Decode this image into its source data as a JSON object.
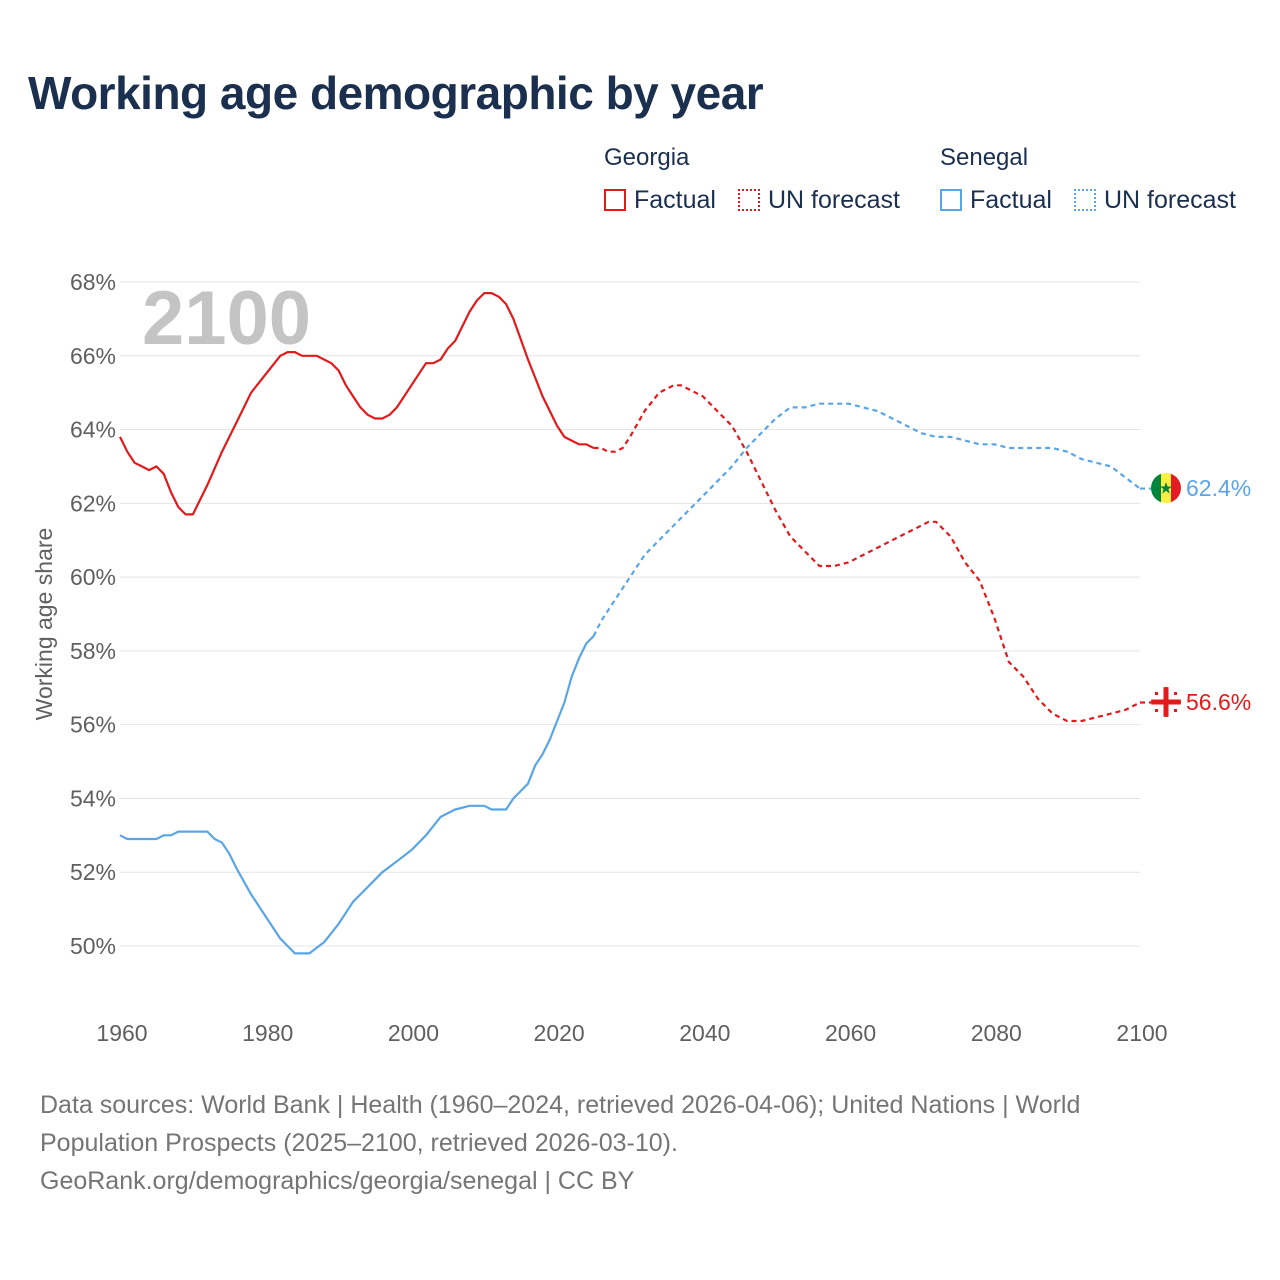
{
  "title": "Working age demographic by year",
  "year_watermark": "2100",
  "legend": {
    "georgia": {
      "label": "Georgia",
      "factual": "Factual",
      "forecast": "UN forecast",
      "color": "#e31a1c"
    },
    "senegal": {
      "label": "Senegal",
      "factual": "Factual",
      "forecast": "UN forecast",
      "color": "#5aa5e6"
    }
  },
  "end_labels": {
    "senegal": "62.4%",
    "georgia": "56.6%"
  },
  "sources": {
    "line1": "Data sources: World Bank | Health (1960–2024, retrieved 2026-04-06); United Nations | World",
    "line2": "Population Prospects (2025–2100, retrieved 2026-03-10).",
    "line3": "GeoRank.org/demographics/georgia/senegal | CC BY"
  },
  "chart_data": {
    "type": "line",
    "title": "Working age demographic by year",
    "xlabel": "",
    "ylabel": "Working age share",
    "xlim": [
      1960,
      2100
    ],
    "ylim": [
      48.5,
      68
    ],
    "y_ticks": [
      50,
      52,
      54,
      56,
      58,
      60,
      62,
      64,
      66,
      68
    ],
    "y_tick_labels": [
      "50%",
      "52%",
      "54%",
      "56%",
      "58%",
      "60%",
      "62%",
      "64%",
      "66%",
      "68%"
    ],
    "x_ticks": [
      1960,
      1980,
      2000,
      2020,
      2040,
      2060,
      2080,
      2100
    ],
    "x_tick_labels": [
      "1960",
      "1980",
      "2000",
      "2020",
      "2040",
      "2060",
      "2080",
      "2100"
    ],
    "forecast_start": 2025,
    "series": [
      {
        "name": "Georgia",
        "color": "#e31a1c",
        "x": [
          1960,
          1961,
          1962,
          1963,
          1964,
          1965,
          1966,
          1967,
          1968,
          1969,
          1970,
          1972,
          1974,
          1976,
          1978,
          1980,
          1982,
          1983,
          1984,
          1985,
          1986,
          1987,
          1988,
          1989,
          1990,
          1991,
          1992,
          1993,
          1994,
          1995,
          1996,
          1997,
          1998,
          2000,
          2002,
          2003,
          2004,
          2005,
          2006,
          2007,
          2008,
          2009,
          2010,
          2011,
          2012,
          2013,
          2014,
          2016,
          2018,
          2020,
          2021,
          2022,
          2023,
          2024,
          2025,
          2026,
          2027,
          2028,
          2029,
          2030,
          2032,
          2034,
          2036,
          2037,
          2038,
          2040,
          2042,
          2044,
          2046,
          2048,
          2050,
          2052,
          2054,
          2056,
          2057,
          2058,
          2060,
          2062,
          2064,
          2066,
          2068,
          2070,
          2071,
          2072,
          2074,
          2076,
          2078,
          2080,
          2082,
          2084,
          2086,
          2088,
          2090,
          2092,
          2094,
          2096,
          2098,
          2100
        ],
        "y": [
          63.8,
          63.4,
          63.1,
          63.0,
          62.9,
          63.0,
          62.8,
          62.3,
          61.9,
          61.7,
          61.7,
          62.5,
          63.4,
          64.2,
          65.0,
          65.5,
          66.0,
          66.1,
          66.1,
          66.0,
          66.0,
          66.0,
          65.9,
          65.8,
          65.6,
          65.2,
          64.9,
          64.6,
          64.4,
          64.3,
          64.3,
          64.4,
          64.6,
          65.2,
          65.8,
          65.8,
          65.9,
          66.2,
          66.4,
          66.8,
          67.2,
          67.5,
          67.7,
          67.7,
          67.6,
          67.4,
          67.0,
          65.9,
          64.9,
          64.1,
          63.8,
          63.7,
          63.6,
          63.6,
          63.5,
          63.5,
          63.4,
          63.4,
          63.5,
          63.8,
          64.5,
          65.0,
          65.2,
          65.2,
          65.1,
          64.9,
          64.5,
          64.1,
          63.4,
          62.6,
          61.8,
          61.1,
          60.7,
          60.3,
          60.3,
          60.3,
          60.4,
          60.6,
          60.8,
          61.0,
          61.2,
          61.4,
          61.5,
          61.5,
          61.1,
          60.4,
          59.9,
          58.9,
          57.7,
          57.3,
          56.7,
          56.3,
          56.1,
          56.1,
          56.2,
          56.3,
          56.4,
          56.6
        ]
      },
      {
        "name": "Senegal",
        "color": "#5aa5e6",
        "x": [
          1960,
          1961,
          1962,
          1963,
          1964,
          1965,
          1966,
          1967,
          1968,
          1969,
          1970,
          1972,
          1973,
          1974,
          1975,
          1976,
          1978,
          1980,
          1982,
          1984,
          1985,
          1986,
          1988,
          1990,
          1992,
          1993,
          1994,
          1996,
          1998,
          2000,
          2002,
          2004,
          2006,
          2008,
          2010,
          2011,
          2012,
          2013,
          2014,
          2016,
          2017,
          2018,
          2019,
          2020,
          2021,
          2022,
          2023,
          2024,
          2025,
          2026,
          2028,
          2030,
          2032,
          2034,
          2036,
          2038,
          2040,
          2042,
          2044,
          2046,
          2048,
          2050,
          2052,
          2054,
          2056,
          2058,
          2060,
          2062,
          2064,
          2066,
          2068,
          2070,
          2072,
          2074,
          2076,
          2078,
          2080,
          2082,
          2084,
          2086,
          2088,
          2090,
          2092,
          2094,
          2096,
          2098,
          2100
        ],
        "y": [
          53.0,
          52.9,
          52.9,
          52.9,
          52.9,
          52.9,
          53.0,
          53.0,
          53.1,
          53.1,
          53.1,
          53.1,
          52.9,
          52.8,
          52.5,
          52.1,
          51.4,
          50.8,
          50.2,
          49.8,
          49.8,
          49.8,
          50.1,
          50.6,
          51.2,
          51.4,
          51.6,
          52.0,
          52.3,
          52.6,
          53.0,
          53.5,
          53.7,
          53.8,
          53.8,
          53.7,
          53.7,
          53.7,
          54.0,
          54.4,
          54.9,
          55.2,
          55.6,
          56.1,
          56.6,
          57.3,
          57.8,
          58.2,
          58.4,
          58.8,
          59.4,
          60.0,
          60.6,
          61.0,
          61.4,
          61.8,
          62.2,
          62.6,
          63.0,
          63.5,
          63.9,
          64.3,
          64.6,
          64.6,
          64.7,
          64.7,
          64.7,
          64.6,
          64.5,
          64.3,
          64.1,
          63.9,
          63.8,
          63.8,
          63.7,
          63.6,
          63.6,
          63.5,
          63.5,
          63.5,
          63.5,
          63.4,
          63.2,
          63.1,
          63.0,
          62.7,
          62.4
        ]
      }
    ]
  }
}
